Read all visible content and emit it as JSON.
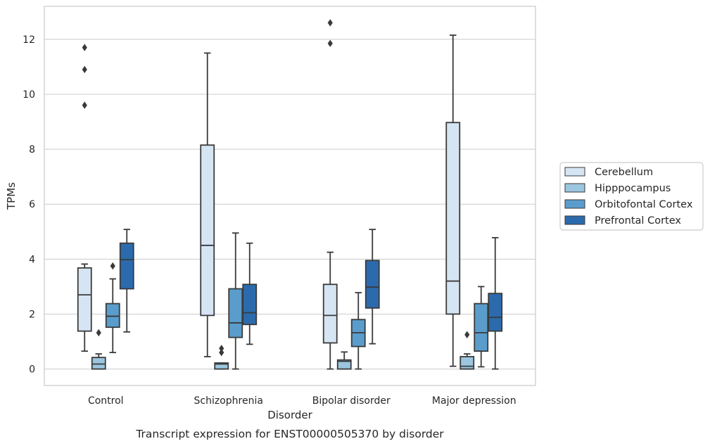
{
  "chart_data": {
    "type": "box",
    "title": "",
    "caption": "Transcript expression for ENST00000505370 by disorder",
    "xlabel": "Disorder",
    "ylabel": "TPMs",
    "ylim": [
      -0.6,
      13.2
    ],
    "yticks": [
      0,
      2,
      4,
      6,
      8,
      10,
      12
    ],
    "grid": "horizontal",
    "legend_position": "right",
    "categories": [
      "Control",
      "Schizophrenia",
      "Bipolar disorder",
      "Major depression"
    ],
    "series": [
      {
        "name": "Cerebellum",
        "color": "#d6e5f4",
        "boxes": [
          {
            "whislo": 0.65,
            "q1": 1.38,
            "med": 2.7,
            "q3": 3.68,
            "whishi": 3.82,
            "fliers": [
              9.6,
              10.9,
              11.7
            ]
          },
          {
            "whislo": 0.45,
            "q1": 1.95,
            "med": 4.5,
            "q3": 8.15,
            "whishi": 11.5,
            "fliers": []
          },
          {
            "whislo": 0.0,
            "q1": 0.95,
            "med": 1.95,
            "q3": 3.08,
            "whishi": 4.25,
            "fliers": [
              11.85,
              12.6
            ]
          },
          {
            "whislo": 0.1,
            "q1": 2.0,
            "med": 3.2,
            "q3": 8.97,
            "whishi": 12.15,
            "fliers": []
          }
        ]
      },
      {
        "name": "Hipppocampus",
        "color": "#9cc6e0",
        "boxes": [
          {
            "whislo": 0.0,
            "q1": 0.0,
            "med": 0.18,
            "q3": 0.42,
            "whishi": 0.55,
            "fliers": [
              1.32
            ]
          },
          {
            "whislo": 0.0,
            "q1": 0.0,
            "med": 0.18,
            "q3": 0.22,
            "whishi": 0.22,
            "fliers": [
              0.6,
              0.75
            ]
          },
          {
            "whislo": 0.0,
            "q1": 0.0,
            "med": 0.28,
            "q3": 0.33,
            "whishi": 0.62,
            "fliers": []
          },
          {
            "whislo": 0.0,
            "q1": 0.0,
            "med": 0.1,
            "q3": 0.45,
            "whishi": 0.55,
            "fliers": [
              1.25
            ]
          }
        ]
      },
      {
        "name": "Orbitofontal Cortex",
        "color": "#5a9dcc",
        "boxes": [
          {
            "whislo": 0.6,
            "q1": 1.52,
            "med": 1.92,
            "q3": 2.38,
            "whishi": 3.28,
            "fliers": [
              3.75
            ]
          },
          {
            "whislo": 0.0,
            "q1": 1.15,
            "med": 1.68,
            "q3": 2.92,
            "whishi": 4.95,
            "fliers": []
          },
          {
            "whislo": 0.0,
            "q1": 0.82,
            "med": 1.32,
            "q3": 1.8,
            "whishi": 2.78,
            "fliers": []
          },
          {
            "whislo": 0.08,
            "q1": 0.65,
            "med": 1.32,
            "q3": 2.38,
            "whishi": 3.0,
            "fliers": []
          }
        ]
      },
      {
        "name": "Prefrontal Cortex",
        "color": "#2b6bad",
        "boxes": [
          {
            "whislo": 1.35,
            "q1": 2.92,
            "med": 3.98,
            "q3": 4.58,
            "whishi": 5.08,
            "fliers": []
          },
          {
            "whislo": 0.9,
            "q1": 1.62,
            "med": 2.05,
            "q3": 3.08,
            "whishi": 4.58,
            "fliers": []
          },
          {
            "whislo": 0.92,
            "q1": 2.22,
            "med": 2.98,
            "q3": 3.95,
            "whishi": 5.08,
            "fliers": []
          },
          {
            "whislo": 0.0,
            "q1": 1.38,
            "med": 1.88,
            "q3": 2.75,
            "whishi": 4.78,
            "fliers": []
          }
        ]
      }
    ]
  }
}
